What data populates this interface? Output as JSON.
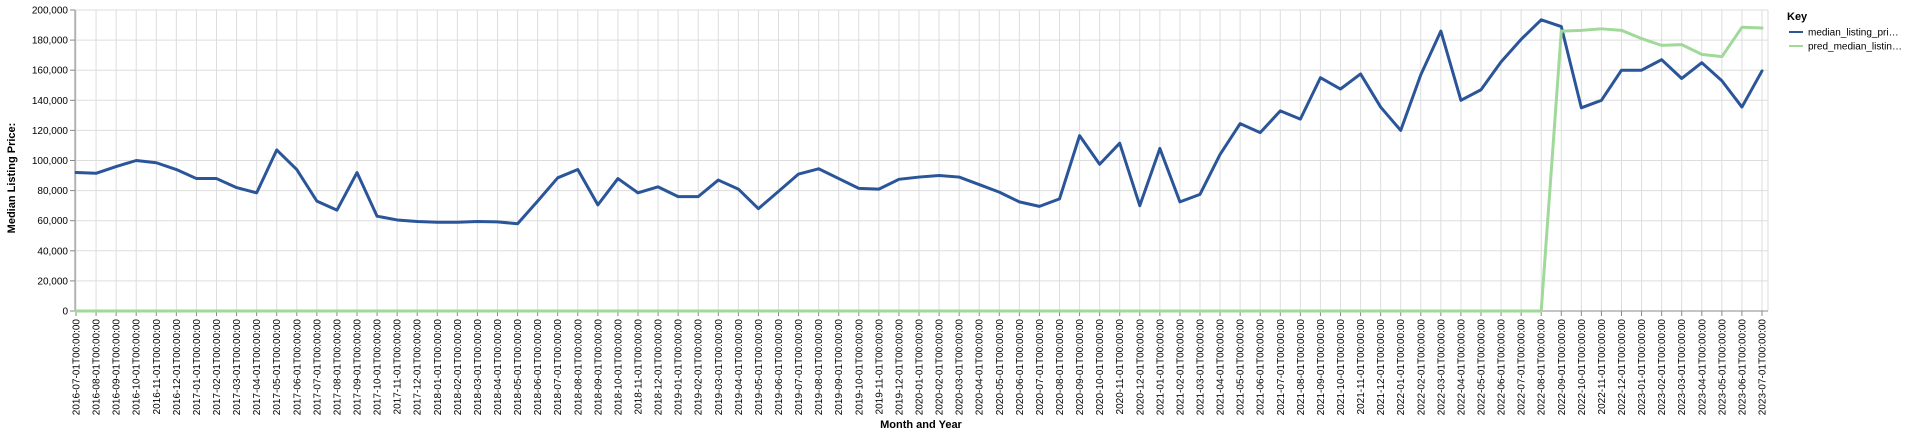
{
  "chart_data": {
    "type": "line",
    "xlabel": "Month and Year",
    "ylabel": "Median Listing Price:",
    "ylim": [
      0,
      200000
    ],
    "yticks": [
      0,
      20000,
      40000,
      60000,
      80000,
      100000,
      120000,
      140000,
      160000,
      180000,
      200000
    ],
    "grid": true,
    "legend": {
      "title": "Key",
      "placement": "right"
    },
    "x": [
      "2016-07-01T00:00:00",
      "2016-08-01T00:00:00",
      "2016-09-01T00:00:00",
      "2016-10-01T00:00:00",
      "2016-11-01T00:00:00",
      "2016-12-01T00:00:00",
      "2017-01-01T00:00:00",
      "2017-02-01T00:00:00",
      "2017-03-01T00:00:00",
      "2017-04-01T00:00:00",
      "2017-05-01T00:00:00",
      "2017-06-01T00:00:00",
      "2017-07-01T00:00:00",
      "2017-08-01T00:00:00",
      "2017-09-01T00:00:00",
      "2017-10-01T00:00:00",
      "2017-11-01T00:00:00",
      "2017-12-01T00:00:00",
      "2018-01-01T00:00:00",
      "2018-02-01T00:00:00",
      "2018-03-01T00:00:00",
      "2018-04-01T00:00:00",
      "2018-05-01T00:00:00",
      "2018-06-01T00:00:00",
      "2018-07-01T00:00:00",
      "2018-08-01T00:00:00",
      "2018-09-01T00:00:00",
      "2018-10-01T00:00:00",
      "2018-11-01T00:00:00",
      "2018-12-01T00:00:00",
      "2019-01-01T00:00:00",
      "2019-02-01T00:00:00",
      "2019-03-01T00:00:00",
      "2019-04-01T00:00:00",
      "2019-05-01T00:00:00",
      "2019-06-01T00:00:00",
      "2019-07-01T00:00:00",
      "2019-08-01T00:00:00",
      "2019-09-01T00:00:00",
      "2019-10-01T00:00:00",
      "2019-11-01T00:00:00",
      "2019-12-01T00:00:00",
      "2020-01-01T00:00:00",
      "2020-02-01T00:00:00",
      "2020-03-01T00:00:00",
      "2020-04-01T00:00:00",
      "2020-05-01T00:00:00",
      "2020-06-01T00:00:00",
      "2020-07-01T00:00:00",
      "2020-08-01T00:00:00",
      "2020-09-01T00:00:00",
      "2020-10-01T00:00:00",
      "2020-11-01T00:00:00",
      "2020-12-01T00:00:00",
      "2021-01-01T00:00:00",
      "2021-02-01T00:00:00",
      "2021-03-01T00:00:00",
      "2021-04-01T00:00:00",
      "2021-05-01T00:00:00",
      "2021-06-01T00:00:00",
      "2021-07-01T00:00:00",
      "2021-08-01T00:00:00",
      "2021-09-01T00:00:00",
      "2021-10-01T00:00:00",
      "2021-11-01T00:00:00",
      "2021-12-01T00:00:00",
      "2022-01-01T00:00:00",
      "2022-02-01T00:00:00",
      "2022-03-01T00:00:00",
      "2022-04-01T00:00:00",
      "2022-05-01T00:00:00",
      "2022-06-01T00:00:00",
      "2022-07-01T00:00:00",
      "2022-08-01T00:00:00",
      "2022-09-01T00:00:00",
      "2022-10-01T00:00:00",
      "2022-11-01T00:00:00",
      "2022-12-01T00:00:00",
      "2023-01-01T00:00:00",
      "2023-02-01T00:00:00",
      "2023-03-01T00:00:00",
      "2023-04-01T00:00:00",
      "2023-05-01T00:00:00",
      "2023-06-01T00:00:00",
      "2023-07-01T00:00:00"
    ],
    "series": [
      {
        "name": "median_listing_pri…",
        "color": "#2a5599",
        "values": [
          92000,
          91500,
          96000,
          100000,
          98500,
          94000,
          88000,
          88000,
          82000,
          78500,
          107000,
          94000,
          73000,
          67000,
          92000,
          63000,
          60500,
          59500,
          59000,
          59000,
          59500,
          59200,
          58000,
          73000,
          88500,
          94000,
          70500,
          88000,
          78500,
          82500,
          76000,
          76000,
          87000,
          81000,
          68000,
          79500,
          91000,
          94500,
          88000,
          81500,
          81000,
          87500,
          89000,
          90000,
          89000,
          84000,
          79000,
          72500,
          69500,
          74500,
          116500,
          97500,
          111500,
          70000,
          108000,
          72500,
          77500,
          104000,
          124500,
          118500,
          133000,
          127500,
          155000,
          147500,
          157500,
          135500,
          120000,
          157000,
          186000,
          140000,
          147000,
          165500,
          180500,
          193500,
          189000,
          135000,
          140000,
          160000,
          160000,
          167000,
          154500,
          165000,
          153000,
          135500,
          159500
        ]
      },
      {
        "name": "pred_median_listin…",
        "color": "#a1d99b",
        "values": [
          0,
          0,
          0,
          0,
          0,
          0,
          0,
          0,
          0,
          0,
          0,
          0,
          0,
          0,
          0,
          0,
          0,
          0,
          0,
          0,
          0,
          0,
          0,
          0,
          0,
          0,
          0,
          0,
          0,
          0,
          0,
          0,
          0,
          0,
          0,
          0,
          0,
          0,
          0,
          0,
          0,
          0,
          0,
          0,
          0,
          0,
          0,
          0,
          0,
          0,
          0,
          0,
          0,
          0,
          0,
          0,
          0,
          0,
          0,
          0,
          0,
          0,
          0,
          0,
          0,
          0,
          0,
          0,
          0,
          0,
          0,
          0,
          0,
          0,
          186000,
          186500,
          187500,
          186500,
          181000,
          176500,
          177000,
          170500,
          169000,
          188500,
          188000
        ]
      }
    ]
  }
}
